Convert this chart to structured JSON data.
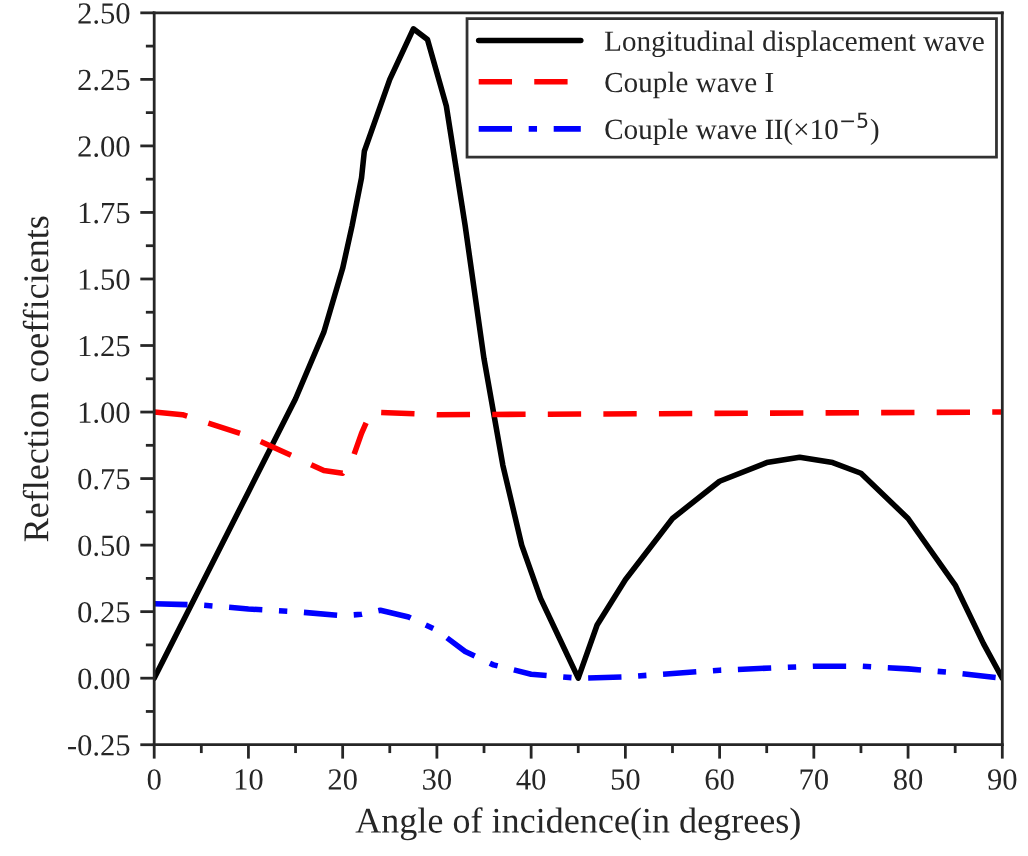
{
  "chart_data": {
    "type": "line",
    "xlabel": "Angle of incidence(in degrees)",
    "ylabel": "Reflection coefficients",
    "xlim": [
      0,
      90
    ],
    "xticks": [
      0,
      10,
      20,
      30,
      40,
      50,
      60,
      70,
      80,
      90
    ],
    "ylim": [
      -0.25,
      2.5
    ],
    "yticks": [
      {
        "value": -0.25,
        "label": "-0.25"
      },
      {
        "value": 0,
        "label": "0.00"
      },
      {
        "value": 0.25,
        "label": "0.25"
      },
      {
        "value": 0.5,
        "label": "0.50"
      },
      {
        "value": 0.75,
        "label": "0.75"
      },
      {
        "value": 1.0,
        "label": "1.00"
      },
      {
        "value": 1.25,
        "label": "1.25"
      },
      {
        "value": 1.5,
        "label": "1.50"
      },
      {
        "value": 1.75,
        "label": "1.75"
      },
      {
        "value": 2.0,
        "label": "2.00"
      },
      {
        "value": 2.25,
        "label": "2.25"
      },
      {
        "value": 2.5,
        "label": "2.50"
      }
    ],
    "legend": "top right",
    "grid": false,
    "series": [
      {
        "name": "Longitudinal displacement wave",
        "color": "#000000",
        "line_style": "solid",
        "x": [
          0,
          5,
          10,
          15,
          18,
          20,
          21,
          22,
          22.3,
          23,
          25,
          27.5,
          29,
          31,
          33,
          35,
          37,
          39,
          41,
          43,
          45,
          47,
          50,
          55,
          60,
          65,
          68.5,
          72,
          75,
          80,
          85,
          88,
          90
        ],
        "values": [
          0,
          0.35,
          0.7,
          1.05,
          1.3,
          1.54,
          1.7,
          1.88,
          1.98,
          2.05,
          2.25,
          2.44,
          2.4,
          2.15,
          1.7,
          1.2,
          0.8,
          0.5,
          0.3,
          0.15,
          0.0,
          0.2,
          0.37,
          0.6,
          0.74,
          0.81,
          0.83,
          0.81,
          0.77,
          0.6,
          0.35,
          0.13,
          0
        ]
      },
      {
        "name": "Couple wave I",
        "color": "#ff0000",
        "line_style": "dashed",
        "x": [
          0,
          3,
          10,
          15,
          18,
          20,
          21,
          22,
          23,
          30,
          90
        ],
        "values": [
          1.0,
          0.99,
          0.91,
          0.83,
          0.78,
          0.77,
          0.82,
          0.92,
          1.0,
          0.99,
          1.0
        ]
      },
      {
        "name": "Couple wave II(×10$^{−5}$)",
        "color": "#0000ff",
        "line_style": "dashdot",
        "x": [
          0,
          5,
          10,
          15,
          20,
          22,
          24,
          27,
          30,
          33,
          36,
          40,
          45,
          50,
          60,
          70,
          75,
          80,
          85,
          90
        ],
        "values": [
          0.28,
          0.275,
          0.26,
          0.25,
          0.235,
          0.24,
          0.255,
          0.23,
          0.18,
          0.1,
          0.05,
          0.015,
          0.0,
          0.005,
          0.03,
          0.045,
          0.045,
          0.035,
          0.02,
          0.0
        ]
      }
    ]
  }
}
